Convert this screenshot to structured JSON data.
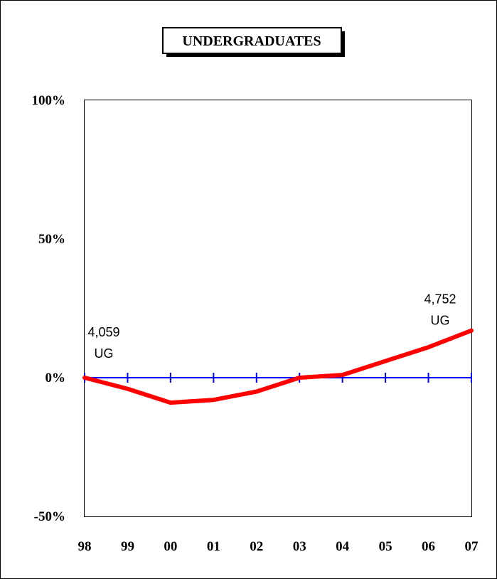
{
  "chart_data": {
    "type": "line",
    "title": "UNDERGRADUATES",
    "xlabel": "",
    "ylabel": "",
    "categories": [
      "98",
      "99",
      "00",
      "01",
      "02",
      "03",
      "04",
      "05",
      "06",
      "07"
    ],
    "y_ticks": [
      "100%",
      "50%",
      "0%",
      "-50%"
    ],
    "y_tick_values": [
      100,
      50,
      0,
      -50
    ],
    "ylim": [
      -50,
      100
    ],
    "series": [
      {
        "values": [
          0,
          -4,
          -9,
          -8,
          -5,
          0,
          1,
          6,
          11,
          17
        ],
        "color": "#ff0000"
      }
    ],
    "baseline": {
      "value": 0,
      "color": "#0000ff"
    },
    "annotations": [
      {
        "lines": [
          "4,059",
          "UG"
        ],
        "at_category": "98"
      },
      {
        "lines": [
          "4,752",
          "UG"
        ],
        "at_category": "07"
      }
    ],
    "grid": false,
    "legend": "none"
  }
}
